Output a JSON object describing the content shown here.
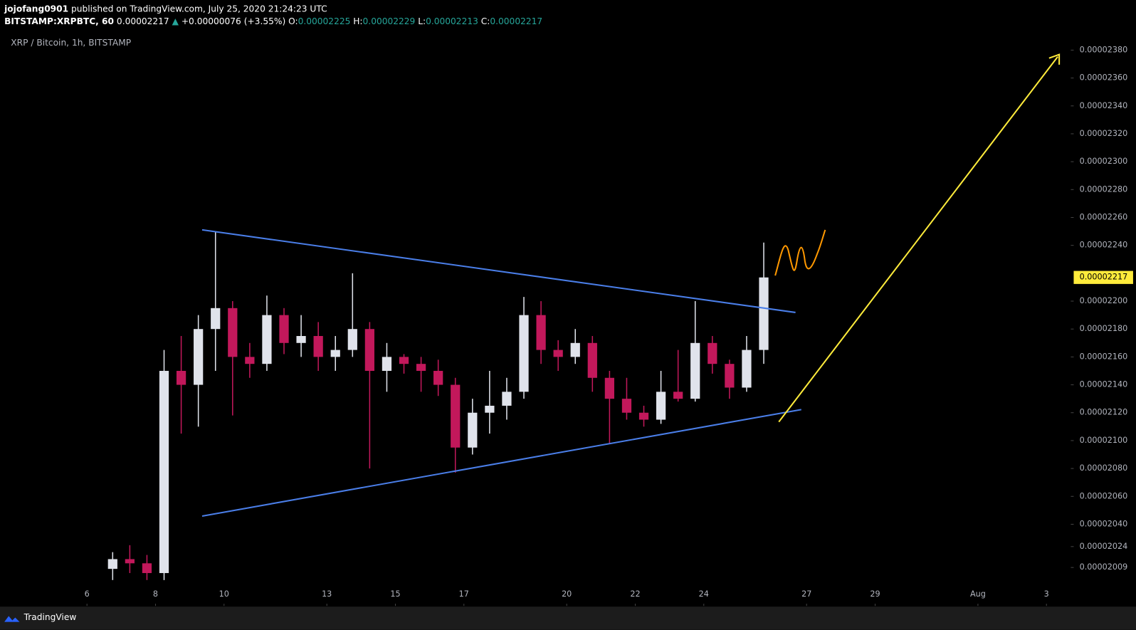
{
  "header": {
    "author": "jojofang0901",
    "published": " published on TradingView.com, July 25, 2020 21:24:23 UTC",
    "symbol": "BITSTAMP:XRPBTC, 60",
    "price": " 0.00002217",
    "arrow": " ▲",
    "change": " +0.00000076 (+3.55%)",
    "ohlc": [
      {
        "label": " O:",
        "value": "0.00002225"
      },
      {
        "label": " H:",
        "value": "0.00002229"
      },
      {
        "label": " L:",
        "value": "0.00002213"
      },
      {
        "label": " C:",
        "value": "0.00002217"
      }
    ],
    "footer": "TradingView"
  },
  "chart_data": {
    "type": "candlestick",
    "title": "XRP / Bitcoin, 1h, BITSTAMP",
    "up_color": "#e0e3eb",
    "down_color": "#c2185b",
    "x": [
      6.75,
      7.25,
      7.75,
      8.25,
      8.75,
      9.25,
      9.75,
      10.25,
      10.75,
      11.25,
      11.75,
      12.25,
      12.75,
      13.25,
      13.75,
      14.25,
      14.75,
      15.25,
      15.75,
      16.25,
      16.75,
      17.25,
      17.75,
      18.25,
      18.75,
      19.25,
      19.75,
      20.25,
      20.75,
      21.25,
      21.75,
      22.25,
      22.75,
      23.25,
      23.75,
      24.25,
      24.75,
      25.25,
      25.75
    ],
    "open": [
      2.008e-05,
      2.015e-05,
      2.012e-05,
      2.005e-05,
      2.15e-05,
      2.14e-05,
      2.18e-05,
      2.195e-05,
      2.16e-05,
      2.155e-05,
      2.19e-05,
      2.17e-05,
      2.175e-05,
      2.16e-05,
      2.165e-05,
      2.18e-05,
      2.15e-05,
      2.16e-05,
      2.155e-05,
      2.15e-05,
      2.14e-05,
      2.095e-05,
      2.12e-05,
      2.125e-05,
      2.135e-05,
      2.19e-05,
      2.165e-05,
      2.16e-05,
      2.17e-05,
      2.145e-05,
      2.13e-05,
      2.12e-05,
      2.115e-05,
      2.135e-05,
      2.13e-05,
      2.17e-05,
      2.155e-05,
      2.138e-05,
      2.165e-05
    ],
    "high": [
      2.02e-05,
      2.025e-05,
      2.018e-05,
      2.165e-05,
      2.175e-05,
      2.19e-05,
      2.25e-05,
      2.2e-05,
      2.17e-05,
      2.204e-05,
      2.195e-05,
      2.19e-05,
      2.185e-05,
      2.175e-05,
      2.22e-05,
      2.185e-05,
      2.17e-05,
      2.162e-05,
      2.16e-05,
      2.158e-05,
      2.145e-05,
      2.13e-05,
      2.15e-05,
      2.145e-05,
      2.203e-05,
      2.2e-05,
      2.172e-05,
      2.18e-05,
      2.175e-05,
      2.15e-05,
      2.145e-05,
      2.125e-05,
      2.15e-05,
      2.165e-05,
      2.2e-05,
      2.175e-05,
      2.158e-05,
      2.175e-05,
      2.242e-05
    ],
    "low": [
      2e-05,
      2.005e-05,
      2e-05,
      2e-05,
      2.105e-05,
      2.11e-05,
      2.15e-05,
      2.118e-05,
      2.145e-05,
      2.15e-05,
      2.162e-05,
      2.16e-05,
      2.15e-05,
      2.15e-05,
      2.16e-05,
      2.08e-05,
      2.135e-05,
      2.148e-05,
      2.135e-05,
      2.132e-05,
      2.077e-05,
      2.09e-05,
      2.105e-05,
      2.115e-05,
      2.13e-05,
      2.155e-05,
      2.15e-05,
      2.155e-05,
      2.135e-05,
      2.098e-05,
      2.115e-05,
      2.11e-05,
      2.112e-05,
      2.128e-05,
      2.128e-05,
      2.148e-05,
      2.13e-05,
      2.135e-05,
      2.155e-05
    ],
    "close": [
      2.015e-05,
      2.012e-05,
      2.005e-05,
      2.15e-05,
      2.14e-05,
      2.18e-05,
      2.195e-05,
      2.16e-05,
      2.155e-05,
      2.19e-05,
      2.17e-05,
      2.175e-05,
      2.16e-05,
      2.165e-05,
      2.18e-05,
      2.15e-05,
      2.16e-05,
      2.155e-05,
      2.15e-05,
      2.14e-05,
      2.095e-05,
      2.12e-05,
      2.125e-05,
      2.135e-05,
      2.19e-05,
      2.165e-05,
      2.16e-05,
      2.17e-05,
      2.145e-05,
      2.13e-05,
      2.12e-05,
      2.115e-05,
      2.135e-05,
      2.13e-05,
      2.17e-05,
      2.155e-05,
      2.138e-05,
      2.165e-05,
      2.217e-05
    ],
    "last_price": 2.217e-05,
    "last_price_color": "#ffeb3b",
    "xlim": [
      3.61,
      34.71
    ],
    "xticks": [
      6,
      8,
      10,
      13,
      15,
      17,
      20,
      22,
      24,
      27,
      29,
      {
        "value": 32,
        "label": "Aug"
      },
      {
        "value": 34,
        "label": "3"
      }
    ],
    "ylim": [
      1.983e-05,
      2.394e-05
    ],
    "yticks": [
      {
        "value": 2.38e-05,
        "label": "0.00002380"
      },
      {
        "value": 2.36e-05,
        "label": "0.00002360"
      },
      {
        "value": 2.34e-05,
        "label": "0.00002340"
      },
      {
        "value": 2.32e-05,
        "label": "0.00002320"
      },
      {
        "value": 2.3e-05,
        "label": "0.00002300"
      },
      {
        "value": 2.28e-05,
        "label": "0.00002280"
      },
      {
        "value": 2.26e-05,
        "label": "0.00002260"
      },
      {
        "value": 2.24e-05,
        "label": "0.00002240"
      },
      {
        "value": 2.2e-05,
        "label": "0.00002200"
      },
      {
        "value": 2.18e-05,
        "label": "0.00002180"
      },
      {
        "value": 2.16e-05,
        "label": "0.00002160"
      },
      {
        "value": 2.14e-05,
        "label": "0.00002140"
      },
      {
        "value": 2.12e-05,
        "label": "0.00002120"
      },
      {
        "value": 2.1e-05,
        "label": "0.00002100"
      },
      {
        "value": 2.08e-05,
        "label": "0.00002080"
      },
      {
        "value": 2.06e-05,
        "label": "0.00002060"
      },
      {
        "value": 2.04e-05,
        "label": "0.00002040"
      },
      2.024e-05,
      2.009e-05
    ]
  }
}
